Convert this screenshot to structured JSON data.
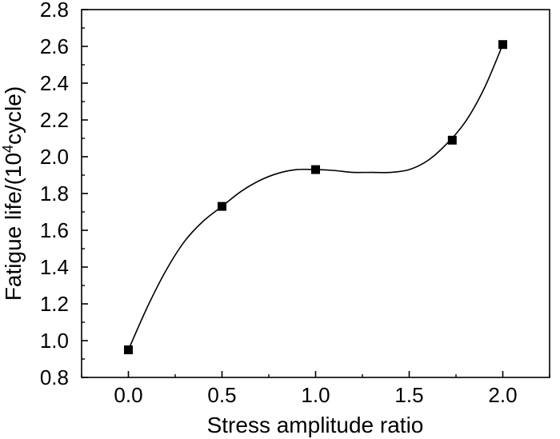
{
  "chart_data": {
    "type": "line",
    "title": "",
    "xlabel": "Stress amplitude ratio",
    "ylabel_main": "Fatigue life/(10",
    "ylabel_sup": "4",
    "ylabel_tail": "cycle)",
    "xlim": [
      -0.25,
      2.25
    ],
    "ylim": [
      0.8,
      2.8
    ],
    "xticks": [
      "0.0",
      "0.5",
      "1.0",
      "1.5",
      "2.0"
    ],
    "xtick_values": [
      0.0,
      0.5,
      1.0,
      1.5,
      2.0
    ],
    "yticks": [
      "0.8",
      "1.0",
      "1.2",
      "1.4",
      "1.6",
      "1.8",
      "2.0",
      "2.2",
      "2.4",
      "2.6",
      "2.8"
    ],
    "ytick_values": [
      0.8,
      1.0,
      1.2,
      1.4,
      1.6,
      1.8,
      2.0,
      2.2,
      2.4,
      2.6,
      2.8
    ],
    "series": [
      {
        "x": [
          0.0,
          0.5,
          1.0,
          1.73,
          2.0
        ],
        "y": [
          0.95,
          1.73,
          1.93,
          2.09,
          2.61
        ],
        "marker": "square",
        "color": "#000000"
      }
    ],
    "fit_curve": {
      "x": [
        0.0,
        0.1,
        0.2,
        0.3,
        0.4,
        0.5,
        0.6,
        0.7,
        0.8,
        0.9,
        1.0,
        1.1,
        1.2,
        1.3,
        1.4,
        1.5,
        1.6,
        1.7,
        1.8,
        1.9,
        2.0
      ],
      "y": [
        0.95,
        1.18,
        1.38,
        1.54,
        1.65,
        1.73,
        1.81,
        1.87,
        1.91,
        1.93,
        1.93,
        1.925,
        1.915,
        1.915,
        1.915,
        1.93,
        1.98,
        2.07,
        2.19,
        2.37,
        2.61
      ]
    },
    "grid": false,
    "legend": "none"
  }
}
